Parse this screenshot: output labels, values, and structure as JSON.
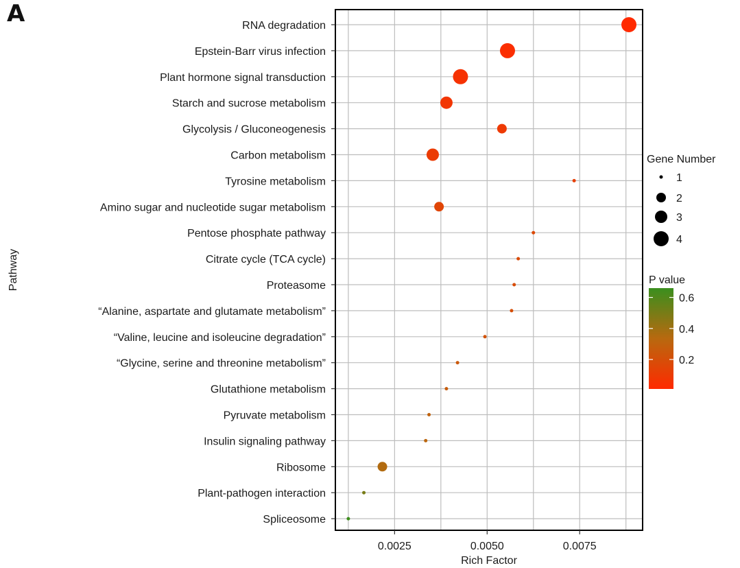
{
  "panel_label": "A",
  "chart_data": {
    "type": "scatter",
    "title": "",
    "xlabel": "Rich Factor",
    "ylabel": "Pathway",
    "xlim": [
      0.0009,
      0.0092
    ],
    "xticks": [
      0.0025,
      0.005,
      0.0075
    ],
    "xtick_labels": [
      "0.0025",
      "0.0050",
      "0.0075"
    ],
    "grid": true,
    "points": [
      {
        "pathway": "RNA degradation",
        "rich_factor": 0.00883,
        "gene_number": 4,
        "p_value": 0.01
      },
      {
        "pathway": "Epstein-Barr virus infection",
        "rich_factor": 0.00555,
        "gene_number": 4,
        "p_value": 0.03
      },
      {
        "pathway": "Plant hormone signal transduction",
        "rich_factor": 0.00428,
        "gene_number": 4,
        "p_value": 0.05
      },
      {
        "pathway": "Starch and sucrose metabolism",
        "rich_factor": 0.0039,
        "gene_number": 3,
        "p_value": 0.07
      },
      {
        "pathway": "Glycolysis / Gluconeogenesis",
        "rich_factor": 0.0054,
        "gene_number": 2,
        "p_value": 0.09
      },
      {
        "pathway": "Carbon metabolism",
        "rich_factor": 0.00353,
        "gene_number": 3,
        "p_value": 0.1
      },
      {
        "pathway": "Tyrosine metabolism",
        "rich_factor": 0.00735,
        "gene_number": 1,
        "p_value": 0.12
      },
      {
        "pathway": "Amino sugar and nucleotide sugar metabolism",
        "rich_factor": 0.0037,
        "gene_number": 2,
        "p_value": 0.15
      },
      {
        "pathway": "Pentose phosphate pathway",
        "rich_factor": 0.00625,
        "gene_number": 1,
        "p_value": 0.17
      },
      {
        "pathway": "Citrate cycle (TCA cycle)",
        "rich_factor": 0.00584,
        "gene_number": 1,
        "p_value": 0.18
      },
      {
        "pathway": "Proteasome",
        "rich_factor": 0.00573,
        "gene_number": 1,
        "p_value": 0.19
      },
      {
        "pathway": "“Alanine, aspartate and glutamate metabolism”",
        "rich_factor": 0.00566,
        "gene_number": 1,
        "p_value": 0.2
      },
      {
        "pathway": "“Valine, leucine and isoleucine degradation”",
        "rich_factor": 0.00494,
        "gene_number": 1,
        "p_value": 0.22
      },
      {
        "pathway": "“Glycine, serine and threonine metabolism”",
        "rich_factor": 0.0042,
        "gene_number": 1,
        "p_value": 0.25
      },
      {
        "pathway": "Glutathione metabolism",
        "rich_factor": 0.0039,
        "gene_number": 1,
        "p_value": 0.27
      },
      {
        "pathway": "Pyruvate metabolism",
        "rich_factor": 0.00343,
        "gene_number": 1,
        "p_value": 0.3
      },
      {
        "pathway": "Insulin signaling pathway",
        "rich_factor": 0.00334,
        "gene_number": 1,
        "p_value": 0.32
      },
      {
        "pathway": "Ribosome",
        "rich_factor": 0.00217,
        "gene_number": 2,
        "p_value": 0.35
      },
      {
        "pathway": "Plant-pathogen interaction",
        "rich_factor": 0.00167,
        "gene_number": 1,
        "p_value": 0.5
      },
      {
        "pathway": "Spliceosome",
        "rich_factor": 0.00125,
        "gene_number": 1,
        "p_value": 0.65
      }
    ],
    "size_legend": {
      "title": "Gene Number",
      "values": [
        1,
        2,
        3,
        4
      ]
    },
    "color_legend": {
      "title": "P value",
      "ticks": [
        0.2,
        0.4,
        0.6
      ],
      "tick_labels": [
        "0.2",
        "0.4",
        "0.6"
      ],
      "range": [
        0.01,
        0.66
      ],
      "low_color": "#ff2a00",
      "mid_color": "#b8690f",
      "high_color": "#3a8f1e"
    },
    "colors": {
      "grid": "#bdbdbd",
      "frame": "#000000",
      "legend_point": "#000000"
    }
  }
}
